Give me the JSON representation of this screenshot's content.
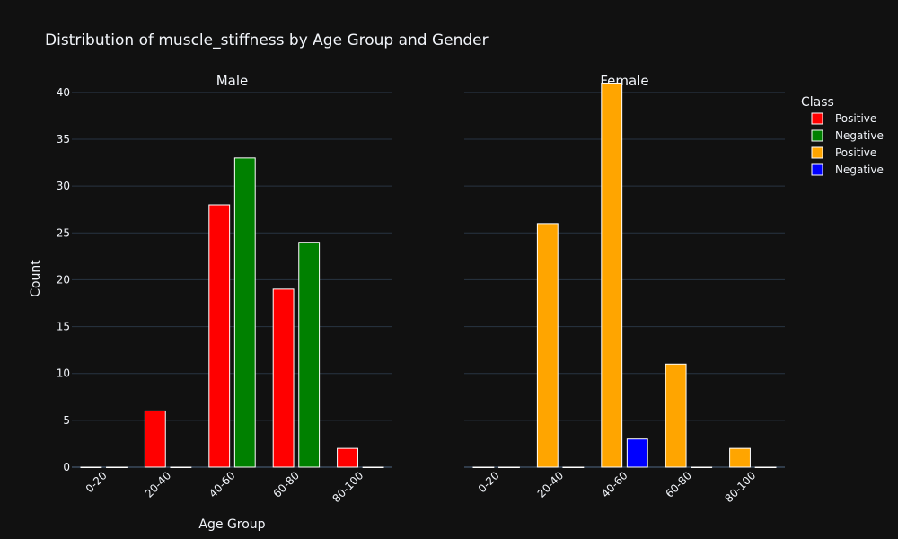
{
  "chart_data": {
    "type": "bar",
    "title": "Distribution of muscle_stiffness by Age Group and Gender",
    "xlabel": "Age Group",
    "ylabel": "Count",
    "ylim": [
      0,
      42
    ],
    "yticks": [
      0,
      5,
      10,
      15,
      20,
      25,
      30,
      35,
      40
    ],
    "categories": [
      "0-20",
      "20-40",
      "40-60",
      "60-80",
      "80-100"
    ],
    "grid": true,
    "legend_title": "Class",
    "legend_position": "right",
    "legend": [
      {
        "name": "Positive",
        "color": "#ff0000"
      },
      {
        "name": "Negative",
        "color": "#008000"
      },
      {
        "name": "Positive",
        "color": "#ffa500"
      },
      {
        "name": "Negative",
        "color": "#0000ff"
      }
    ],
    "panels": [
      {
        "title": "Male",
        "series": [
          {
            "name": "Positive",
            "color": "#ff0000",
            "values": [
              0,
              6,
              28,
              19,
              2
            ]
          },
          {
            "name": "Negative",
            "color": "#008000",
            "values": [
              0,
              0,
              33,
              24,
              0
            ]
          }
        ]
      },
      {
        "title": "Female",
        "series": [
          {
            "name": "Positive",
            "color": "#ffa500",
            "values": [
              0,
              26,
              41,
              11,
              2
            ]
          },
          {
            "name": "Negative",
            "color": "#0000ff",
            "values": [
              0,
              0,
              3,
              0,
              0
            ]
          }
        ]
      }
    ]
  }
}
